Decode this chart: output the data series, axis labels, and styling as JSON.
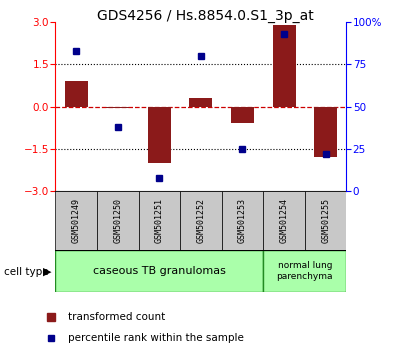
{
  "title": "GDS4256 / Hs.8854.0.S1_3p_at",
  "samples": [
    "GSM501249",
    "GSM501250",
    "GSM501251",
    "GSM501252",
    "GSM501253",
    "GSM501254",
    "GSM501255"
  ],
  "transformed_count": [
    0.9,
    -0.05,
    -2.0,
    0.3,
    -0.6,
    2.9,
    -1.8
  ],
  "percentile_rank": [
    83,
    38,
    8,
    80,
    25,
    93,
    22
  ],
  "left_ylim": [
    -3,
    3
  ],
  "right_ylim": [
    0,
    100
  ],
  "left_yticks": [
    -3,
    -1.5,
    0,
    1.5,
    3
  ],
  "right_yticks": [
    0,
    25,
    50,
    75,
    100
  ],
  "right_yticklabels": [
    "0",
    "25",
    "50",
    "75",
    "100%"
  ],
  "bar_color": "#8B1A1A",
  "dot_color": "#00008B",
  "bar_width": 0.55,
  "hline_color": "#CC0000",
  "dotted_color": "#000000",
  "group1_label": "caseous TB granulomas",
  "group1_color": "#AAFFAA",
  "group2_label": "normal lung\nparenchyma",
  "group2_color": "#AAFFAA",
  "group_border_color": "#228B22",
  "cell_type_label": "cell type",
  "legend_red": "transformed count",
  "legend_blue": "percentile rank within the sample",
  "background_color": "#FFFFFF",
  "plot_bg_color": "#FFFFFF",
  "title_fontsize": 10,
  "tick_fontsize": 7.5,
  "label_fontsize": 7.5,
  "sample_box_color": "#C8C8C8"
}
